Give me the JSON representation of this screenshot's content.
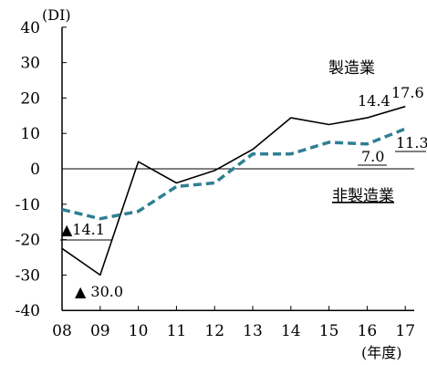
{
  "chart_data": {
    "type": "line",
    "ylabel": "(DI)",
    "x_unit": "(年度)",
    "categories": [
      "08",
      "09",
      "10",
      "11",
      "12",
      "13",
      "14",
      "15",
      "16",
      "17"
    ],
    "yticks": [
      40,
      30,
      20,
      10,
      0,
      -10,
      -20,
      -30,
      -40
    ],
    "ylim": [
      -40,
      40
    ],
    "series": [
      {
        "name": "製造業",
        "values": [
          -22.5,
          -30.0,
          2,
          -4,
          -0.5,
          5.5,
          14.4,
          12.5,
          14.4,
          17.6
        ],
        "color": "#000000",
        "style": "solid"
      },
      {
        "name": "非製造業",
        "values": [
          -11.5,
          -14.1,
          -12,
          -5,
          -4,
          4.2,
          4.2,
          7.5,
          7.0,
          11.3
        ],
        "color": "#2f7f93",
        "style": "dashed"
      }
    ],
    "annotations": [
      {
        "text": "▲14.1"
      },
      {
        "text": "▲ 30.0"
      },
      {
        "text": "14.4"
      },
      {
        "text": "17.6"
      },
      {
        "text": "7.0"
      },
      {
        "text": "11.3"
      }
    ]
  }
}
